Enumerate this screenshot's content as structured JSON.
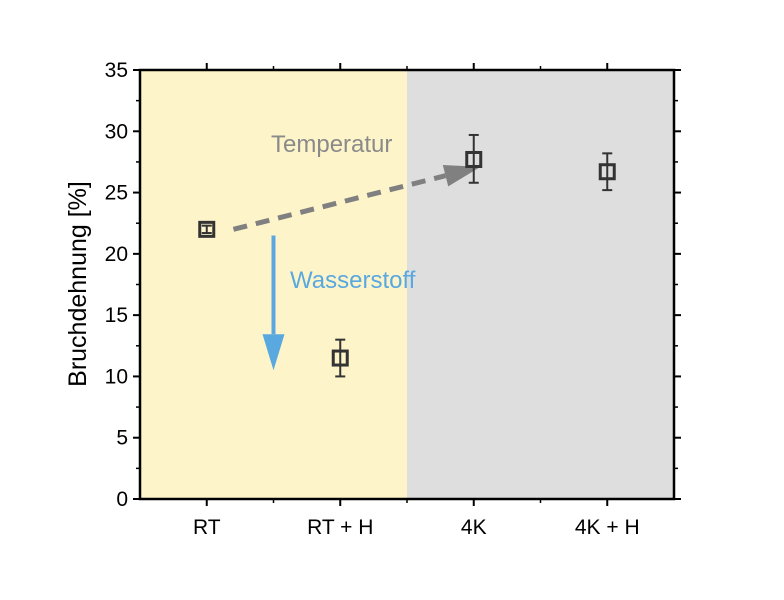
{
  "chart_data": {
    "type": "scatter",
    "title": "",
    "xlabel": "",
    "ylabel": "Bruchdehnung [%]",
    "ylim": [
      0,
      35
    ],
    "yticks": [
      0,
      5,
      10,
      15,
      20,
      25,
      30,
      35
    ],
    "categories": [
      "RT",
      "RT + H",
      "4K",
      "4K + H"
    ],
    "series": [
      {
        "values": [
          22.0,
          11.5,
          27.7,
          26.7
        ],
        "err_low": [
          0.3,
          1.5,
          1.9,
          1.5
        ],
        "err_high": [
          0.3,
          1.5,
          2.0,
          1.5
        ]
      }
    ],
    "regions": [
      {
        "from_category": 0,
        "to_category": 1,
        "color": "#fdf5c9"
      },
      {
        "from_category": 2,
        "to_category": 3,
        "color": "#dedede"
      }
    ],
    "annotations": [
      {
        "text": "Temperatur",
        "color": "#8a8a8a"
      },
      {
        "text": "Wasserstoff",
        "color": "#5aa8e0"
      }
    ],
    "arrows": [
      {
        "name": "temperature-arrow",
        "style": "dashed",
        "color": "#808080",
        "from": {
          "x": 0.2,
          "y": 22.0
        },
        "to": {
          "x": 2.05,
          "y": 27.1
        }
      },
      {
        "name": "hydrogen-arrow",
        "style": "solid",
        "color": "#5aa8e0",
        "from": {
          "x": 0.5,
          "y": 21.5
        },
        "to": {
          "x": 0.5,
          "y": 10.5
        }
      }
    ],
    "grid": false,
    "legend": "none"
  }
}
